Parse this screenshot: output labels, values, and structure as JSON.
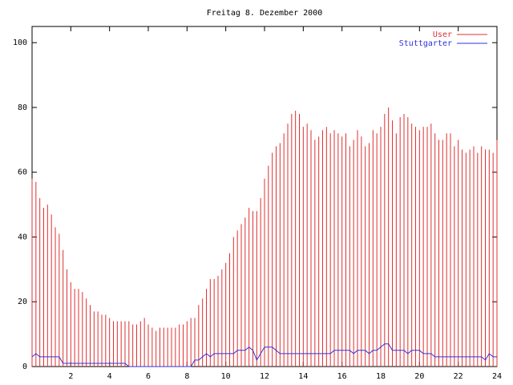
{
  "chart_data": {
    "type": "impulse-line",
    "title": "Freitag 8. Dezember 2000",
    "x": [
      0,
      0.2,
      0.4,
      0.6,
      0.8,
      1,
      1.2,
      1.4,
      1.6,
      1.8,
      2,
      2.2,
      2.4,
      2.6,
      2.8,
      3,
      3.2,
      3.4,
      3.6,
      3.8,
      4,
      4.2,
      4.4,
      4.6,
      4.8,
      5,
      5.2,
      5.4,
      5.6,
      5.8,
      6,
      6.2,
      6.4,
      6.6,
      6.8,
      7,
      7.2,
      7.4,
      7.6,
      7.8,
      8,
      8.2,
      8.4,
      8.6,
      8.8,
      9,
      9.2,
      9.4,
      9.6,
      9.8,
      10,
      10.2,
      10.4,
      10.6,
      10.8,
      11,
      11.2,
      11.4,
      11.6,
      11.8,
      12,
      12.2,
      12.4,
      12.6,
      12.8,
      13,
      13.2,
      13.4,
      13.6,
      13.8,
      14,
      14.2,
      14.4,
      14.6,
      14.8,
      15,
      15.2,
      15.4,
      15.6,
      15.8,
      16,
      16.2,
      16.4,
      16.6,
      16.8,
      17,
      17.2,
      17.4,
      17.6,
      17.8,
      18,
      18.2,
      18.4,
      18.6,
      18.8,
      19,
      19.2,
      19.4,
      19.6,
      19.8,
      20,
      20.2,
      20.4,
      20.6,
      20.8,
      21,
      21.2,
      21.4,
      21.6,
      21.8,
      22,
      22.2,
      22.4,
      22.6,
      22.8,
      23,
      23.2,
      23.4,
      23.6,
      23.8,
      24
    ],
    "series": [
      {
        "name": "User",
        "color": "#e03030",
        "style": "impulses",
        "values": [
          58,
          57,
          52,
          49,
          50,
          47,
          43,
          41,
          36,
          30,
          26,
          24,
          24,
          23,
          21,
          19,
          17,
          17,
          16,
          16,
          15,
          14,
          14,
          14,
          14,
          14,
          13,
          13,
          14,
          15,
          13,
          12,
          11,
          12,
          12,
          12,
          12,
          12,
          13,
          13,
          14,
          15,
          15,
          19,
          21,
          24,
          27,
          27,
          28,
          30,
          32,
          35,
          40,
          42,
          44,
          46,
          49,
          48,
          48,
          52,
          58,
          62,
          66,
          68,
          69,
          72,
          75,
          78,
          79,
          78,
          74,
          75,
          73,
          70,
          71,
          73,
          74,
          72,
          73,
          72,
          71,
          72,
          68,
          70,
          73,
          71,
          68,
          69,
          73,
          72,
          74,
          78,
          80,
          76,
          72,
          77,
          78,
          77,
          75,
          74,
          73,
          74,
          74,
          75,
          72,
          70,
          70,
          72,
          72,
          68,
          70,
          67,
          66,
          67,
          68,
          66,
          68,
          67,
          67,
          66,
          70
        ]
      },
      {
        "name": "Stuttgarter",
        "color": "#3030e0",
        "style": "line",
        "values": [
          3,
          4,
          3,
          3,
          3,
          3,
          3,
          3,
          1,
          1,
          1,
          1,
          1,
          1,
          1,
          1,
          1,
          1,
          1,
          1,
          1,
          1,
          1,
          1,
          1,
          0,
          0,
          0,
          0,
          0,
          0,
          0,
          0,
          0,
          0,
          0,
          0,
          0,
          0,
          0,
          0,
          0,
          2,
          2,
          3,
          4,
          3,
          4,
          4,
          4,
          4,
          4,
          4,
          5,
          5,
          5,
          6,
          5,
          2,
          4,
          6,
          6,
          6,
          5,
          4,
          4,
          4,
          4,
          4,
          4,
          4,
          4,
          4,
          4,
          4,
          4,
          4,
          4,
          5,
          5,
          5,
          5,
          5,
          4,
          5,
          5,
          5,
          4,
          5,
          5,
          6,
          7,
          7,
          5,
          5,
          5,
          5,
          4,
          5,
          5,
          5,
          4,
          4,
          4,
          3,
          3,
          3,
          3,
          3,
          3,
          3,
          3,
          3,
          3,
          3,
          3,
          3,
          2,
          4,
          3,
          3
        ]
      }
    ],
    "xlim": [
      0,
      24
    ],
    "xticks": [
      2,
      4,
      6,
      8,
      10,
      12,
      14,
      16,
      18,
      20,
      22,
      24
    ],
    "ylim": [
      0,
      105
    ],
    "yticks": [
      0,
      20,
      40,
      60,
      80,
      100
    ],
    "legend": "top-right"
  }
}
